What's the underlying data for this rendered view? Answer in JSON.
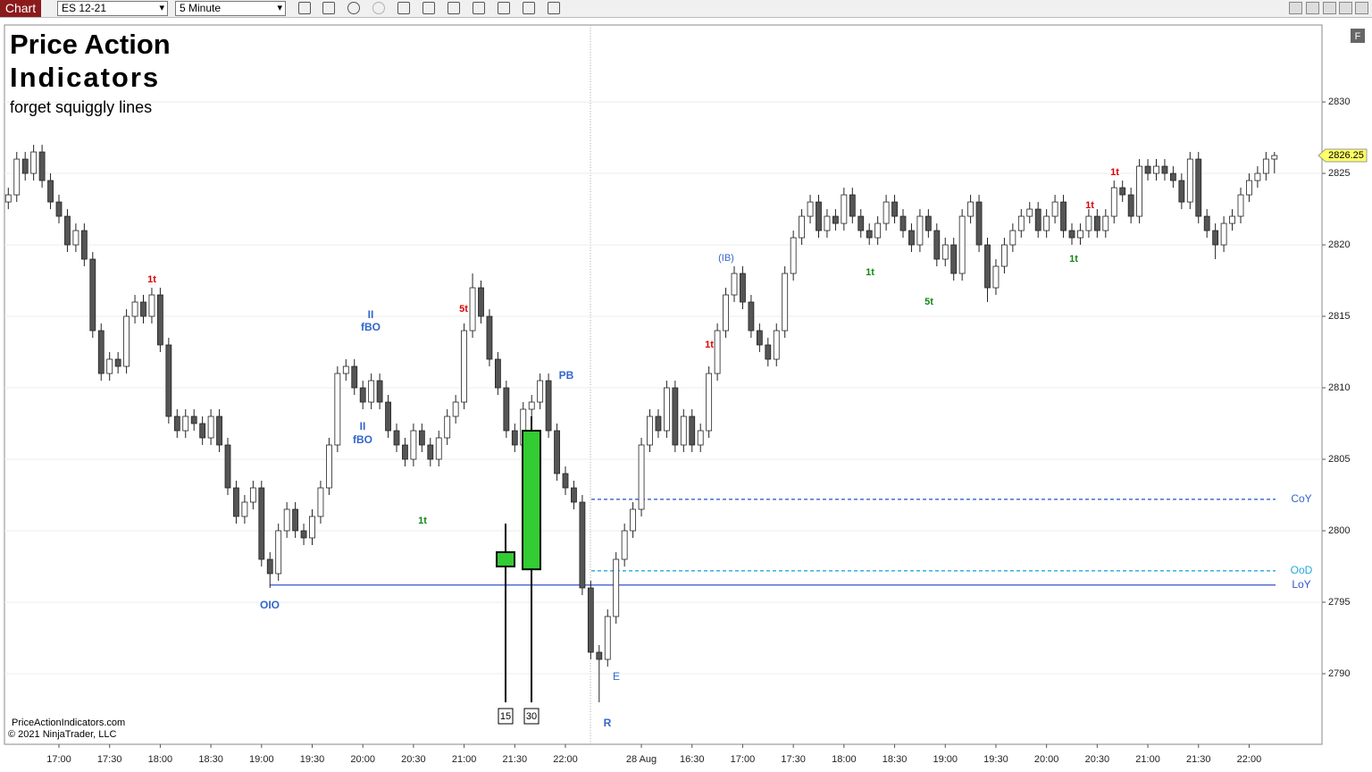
{
  "toolbar": {
    "chart_button": "Chart",
    "instrument": "ES 12-21",
    "interval": "5 Minute"
  },
  "overlay": {
    "title_line1": "Price Action",
    "title_line2": "Indicators",
    "tagline": "forget squiggly lines",
    "website": "PriceActionIndicators.com",
    "copyright": "© 2021 NinjaTrader, LLC"
  },
  "annotations": [
    "II",
    "fBO",
    "II",
    "fBO",
    "OIO",
    "PB",
    "(IB)",
    "E",
    "R",
    "5t",
    "5t",
    "1t",
    "1t",
    "1t",
    "1t",
    "1t",
    "1t",
    "1t"
  ],
  "chart_data": {
    "type": "candlestick",
    "up_color": "#ffffff",
    "down_color": "#555555",
    "outline_color": "#222222",
    "ylim": [
      2785.06,
      2835.38
    ],
    "yticks": [
      2790,
      2795,
      2800,
      2805,
      2810,
      2815,
      2820,
      2825,
      2830
    ],
    "grid": true,
    "last_price": 2826.25,
    "last_price_color": "#ffff66",
    "categories": [
      null,
      null,
      null,
      null,
      null,
      null,
      "17:00",
      null,
      null,
      null,
      null,
      null,
      "17:30",
      null,
      null,
      null,
      null,
      null,
      "18:00",
      null,
      null,
      null,
      null,
      null,
      "18:30",
      null,
      null,
      null,
      null,
      null,
      "19:00",
      null,
      null,
      null,
      null,
      null,
      "19:30",
      null,
      null,
      null,
      null,
      null,
      "20:00",
      null,
      null,
      null,
      null,
      null,
      "20:30",
      null,
      null,
      null,
      null,
      null,
      "21:00",
      null,
      null,
      null,
      null,
      null,
      "21:30",
      null,
      null,
      null,
      null,
      null,
      "22:00",
      null,
      null,
      null,
      null,
      null,
      null,
      null,
      null,
      "28 Aug",
      null,
      null,
      null,
      null,
      null,
      "16:30",
      null,
      null,
      null,
      null,
      null,
      "17:00",
      null,
      null,
      null,
      null,
      null,
      "17:30",
      null,
      null,
      null,
      null,
      null,
      "18:00",
      null,
      null,
      null,
      null,
      null,
      "18:30",
      null,
      null,
      null,
      null,
      null,
      "19:00",
      null,
      null,
      null,
      null,
      null,
      "19:30",
      null,
      null,
      null,
      null,
      null,
      "20:00",
      null,
      null,
      null,
      null,
      null,
      "20:30",
      null,
      null,
      null,
      null,
      null,
      "21:00",
      null,
      null,
      null,
      null,
      null,
      "21:30",
      null,
      null,
      null,
      null,
      null,
      "22:00",
      null,
      null,
      null
    ],
    "ohlc": [
      [
        2823,
        2824,
        2822.5,
        2823.5
      ],
      [
        2823.5,
        2826.5,
        2823,
        2826
      ],
      [
        2826,
        2826.5,
        2824.5,
        2825
      ],
      [
        2825,
        2827,
        2824.5,
        2826.5
      ],
      [
        2826.5,
        2827,
        2824,
        2824.5
      ],
      [
        2824.5,
        2825,
        2822.5,
        2823
      ],
      [
        2823,
        2823.5,
        2821.5,
        2822
      ],
      [
        2822,
        2822.5,
        2819.5,
        2820
      ],
      [
        2820,
        2821.5,
        2819.5,
        2821
      ],
      [
        2821,
        2821.5,
        2818.5,
        2819
      ],
      [
        2819,
        2819.5,
        2813.5,
        2814
      ],
      [
        2814,
        2814.5,
        2810.5,
        2811
      ],
      [
        2811,
        2812.5,
        2810.5,
        2812
      ],
      [
        2812,
        2812.5,
        2811,
        2811.5
      ],
      [
        2811.5,
        2815.5,
        2811,
        2815
      ],
      [
        2815,
        2816.5,
        2814.5,
        2816
      ],
      [
        2816,
        2816.5,
        2814.5,
        2815
      ],
      [
        2815,
        2817,
        2814.5,
        2816.5
      ],
      [
        2816.5,
        2817,
        2812.5,
        2813
      ],
      [
        2813,
        2813.5,
        2807.5,
        2808
      ],
      [
        2808,
        2808.5,
        2806.5,
        2807
      ],
      [
        2807,
        2808.5,
        2806.5,
        2808
      ],
      [
        2808,
        2808.5,
        2807,
        2807.5
      ],
      [
        2807.5,
        2808,
        2806,
        2806.5
      ],
      [
        2806.5,
        2808.5,
        2806,
        2808
      ],
      [
        2808,
        2808.5,
        2805.5,
        2806
      ],
      [
        2806,
        2806.5,
        2802.5,
        2803
      ],
      [
        2803,
        2803.5,
        2800.5,
        2801
      ],
      [
        2801,
        2802.5,
        2800.5,
        2802
      ],
      [
        2802,
        2803.5,
        2801.5,
        2803
      ],
      [
        2803,
        2803.5,
        2797.5,
        2798
      ],
      [
        2798,
        2798.5,
        2796,
        2797
      ],
      [
        2797,
        2800.5,
        2796.5,
        2800
      ],
      [
        2800,
        2802,
        2799.5,
        2801.5
      ],
      [
        2801.5,
        2802,
        2799.5,
        2800
      ],
      [
        2800,
        2800.5,
        2799,
        2799.5
      ],
      [
        2799.5,
        2801.5,
        2799,
        2801
      ],
      [
        2801,
        2803.5,
        2800.5,
        2803
      ],
      [
        2803,
        2806.5,
        2802.5,
        2806
      ],
      [
        2806,
        2811.5,
        2805.5,
        2811
      ],
      [
        2811,
        2812,
        2810.5,
        2811.5
      ],
      [
        2811.5,
        2812,
        2809.5,
        2810
      ],
      [
        2810,
        2810.5,
        2808.5,
        2809
      ],
      [
        2809,
        2811,
        2808.5,
        2810.5
      ],
      [
        2810.5,
        2811,
        2808.5,
        2809
      ],
      [
        2809,
        2809.5,
        2806.5,
        2807
      ],
      [
        2807,
        2807.5,
        2805.5,
        2806
      ],
      [
        2806,
        2806.5,
        2804.5,
        2805
      ],
      [
        2805,
        2807.5,
        2804.5,
        2807
      ],
      [
        2807,
        2807.5,
        2805.5,
        2806
      ],
      [
        2806,
        2806.5,
        2804.5,
        2805
      ],
      [
        2805,
        2807,
        2804.5,
        2806.5
      ],
      [
        2806.5,
        2808.5,
        2806,
        2808
      ],
      [
        2808,
        2809.5,
        2807.5,
        2809
      ],
      [
        2809,
        2814.5,
        2808.5,
        2814
      ],
      [
        2814,
        2818,
        2813.5,
        2817
      ],
      [
        2817,
        2817.5,
        2814.5,
        2815
      ],
      [
        2815,
        2815.5,
        2811.5,
        2812
      ],
      [
        2812,
        2812.5,
        2809.5,
        2810
      ],
      [
        2810,
        2810.5,
        2806.5,
        2807
      ],
      [
        2807,
        2807.5,
        2805.5,
        2806
      ],
      [
        2806,
        2809,
        2805.5,
        2808.5
      ],
      [
        2808.5,
        2809.5,
        2808,
        2809
      ],
      [
        2809,
        2811,
        2808.5,
        2810.5
      ],
      [
        2810.5,
        2811,
        2806.5,
        2807
      ],
      [
        2807,
        2807.5,
        2803.5,
        2804
      ],
      [
        2804,
        2804.5,
        2802.5,
        2803
      ],
      [
        2803,
        2803.5,
        2801.5,
        2802
      ],
      [
        2802,
        2802.5,
        2795.5,
        2796
      ],
      [
        2796,
        2796.5,
        2791,
        2791.5
      ],
      [
        2791.5,
        2792,
        2788,
        2791
      ],
      [
        2791,
        2794.5,
        2790.5,
        2794
      ],
      [
        2794,
        2798.5,
        2793.5,
        2798
      ],
      [
        2798,
        2800.5,
        2797.5,
        2800
      ],
      [
        2800,
        2802,
        2799.5,
        2801.5
      ],
      [
        2801.5,
        2806.5,
        2801,
        2806
      ],
      [
        2806,
        2808.5,
        2805.5,
        2808
      ],
      [
        2808,
        2808.5,
        2806.5,
        2807
      ],
      [
        2807,
        2810.5,
        2806.5,
        2810
      ],
      [
        2810,
        2810.5,
        2805.5,
        2806
      ],
      [
        2806,
        2808.5,
        2805.5,
        2808
      ],
      [
        2808,
        2808.5,
        2805.5,
        2806
      ],
      [
        2806,
        2807.5,
        2805.5,
        2807
      ],
      [
        2807,
        2811.5,
        2806.5,
        2811
      ],
      [
        2811,
        2814.5,
        2810.5,
        2814
      ],
      [
        2814,
        2817,
        2813.5,
        2816.5
      ],
      [
        2816.5,
        2818.5,
        2816,
        2818
      ],
      [
        2818,
        2818.5,
        2815.5,
        2816
      ],
      [
        2816,
        2816.5,
        2813.5,
        2814
      ],
      [
        2814,
        2814.5,
        2812.5,
        2813
      ],
      [
        2813,
        2813.5,
        2811.5,
        2812
      ],
      [
        2812,
        2814.5,
        2811.5,
        2814
      ],
      [
        2814,
        2818.5,
        2813.5,
        2818
      ],
      [
        2818,
        2821,
        2817.5,
        2820.5
      ],
      [
        2820.5,
        2822.5,
        2820,
        2822
      ],
      [
        2822,
        2823.5,
        2821.5,
        2823
      ],
      [
        2823,
        2823.5,
        2820.5,
        2821
      ],
      [
        2821,
        2822.5,
        2820.5,
        2822
      ],
      [
        2822,
        2822.5,
        2821,
        2821.5
      ],
      [
        2821.5,
        2824,
        2821,
        2823.5
      ],
      [
        2823.5,
        2824,
        2821.5,
        2822
      ],
      [
        2822,
        2822.5,
        2820.5,
        2821
      ],
      [
        2821,
        2821.5,
        2820,
        2820.5
      ],
      [
        2820.5,
        2822,
        2820,
        2821.5
      ],
      [
        2821.5,
        2823.5,
        2821,
        2823
      ],
      [
        2823,
        2823.5,
        2821.5,
        2822
      ],
      [
        2822,
        2822.5,
        2820.5,
        2821
      ],
      [
        2821,
        2821.5,
        2819.5,
        2820
      ],
      [
        2820,
        2822.5,
        2819.5,
        2822
      ],
      [
        2822,
        2822.5,
        2820.5,
        2821
      ],
      [
        2821,
        2821.5,
        2818.5,
        2819
      ],
      [
        2819,
        2820.5,
        2818.5,
        2820
      ],
      [
        2820,
        2820.5,
        2817.5,
        2818
      ],
      [
        2818,
        2822.5,
        2817.5,
        2822
      ],
      [
        2822,
        2823.5,
        2821.5,
        2823
      ],
      [
        2823,
        2823.5,
        2819.5,
        2820
      ],
      [
        2820,
        2820.5,
        2816,
        2817
      ],
      [
        2817,
        2819,
        2816.5,
        2818.5
      ],
      [
        2818.5,
        2820.5,
        2818,
        2820
      ],
      [
        2820,
        2821.5,
        2819.5,
        2821
      ],
      [
        2821,
        2822.5,
        2820.5,
        2822
      ],
      [
        2822,
        2823,
        2821.5,
        2822.5
      ],
      [
        2822.5,
        2823,
        2820.5,
        2821
      ],
      [
        2821,
        2822.5,
        2820.5,
        2822
      ],
      [
        2822,
        2823.5,
        2821.5,
        2823
      ],
      [
        2823,
        2823.5,
        2820.5,
        2821
      ],
      [
        2821,
        2821.5,
        2820,
        2820.5
      ],
      [
        2820.5,
        2821.5,
        2820,
        2821
      ],
      [
        2821,
        2822.5,
        2820.5,
        2822
      ],
      [
        2822,
        2822.5,
        2820.5,
        2821
      ],
      [
        2821,
        2822.5,
        2820.5,
        2822
      ],
      [
        2822,
        2824.5,
        2821.5,
        2824
      ],
      [
        2824,
        2824.5,
        2823,
        2823.5
      ],
      [
        2823.5,
        2824,
        2821.5,
        2822
      ],
      [
        2822,
        2826,
        2821.5,
        2825.5
      ],
      [
        2825.5,
        2826,
        2824.5,
        2825
      ],
      [
        2825,
        2826,
        2824.5,
        2825.5
      ],
      [
        2825.5,
        2826,
        2824.5,
        2825
      ],
      [
        2825,
        2825.5,
        2824,
        2824.5
      ],
      [
        2824.5,
        2825,
        2822.5,
        2823
      ],
      [
        2823,
        2826.5,
        2822.5,
        2826
      ],
      [
        2826,
        2826.5,
        2821.5,
        2822
      ],
      [
        2822,
        2822.5,
        2820.5,
        2821
      ],
      [
        2821,
        2821.5,
        2819,
        2820
      ],
      [
        2820,
        2822,
        2819.5,
        2821.5
      ],
      [
        2821.5,
        2822.5,
        2821,
        2822
      ],
      [
        2822,
        2824,
        2821.5,
        2823.5
      ],
      [
        2823.5,
        2825,
        2823,
        2824.5
      ],
      [
        2824.5,
        2825.5,
        2824,
        2825
      ],
      [
        2825,
        2826.5,
        2824.5,
        2826
      ],
      [
        2826,
        2826.5,
        2825,
        2826.25
      ]
    ],
    "htf_candles": [
      {
        "label": "15",
        "open": 2797.5,
        "high": 2800.5,
        "low": 2788,
        "close": 2798.5,
        "color": "#33cc33"
      },
      {
        "label": "30",
        "open": 2797.3,
        "high": 2808,
        "low": 2788,
        "close": 2807,
        "color": "#33cc33"
      }
    ],
    "levels": [
      {
        "name": "CoY",
        "value": 2802.2,
        "color": "#3366cc",
        "style": "dashed"
      },
      {
        "name": "OoD",
        "value": 2797.2,
        "color": "#22aadd",
        "style": "dashed"
      },
      {
        "name": "LoY",
        "value": 2796.2,
        "color": "#3355cc",
        "style": "solid"
      }
    ]
  }
}
